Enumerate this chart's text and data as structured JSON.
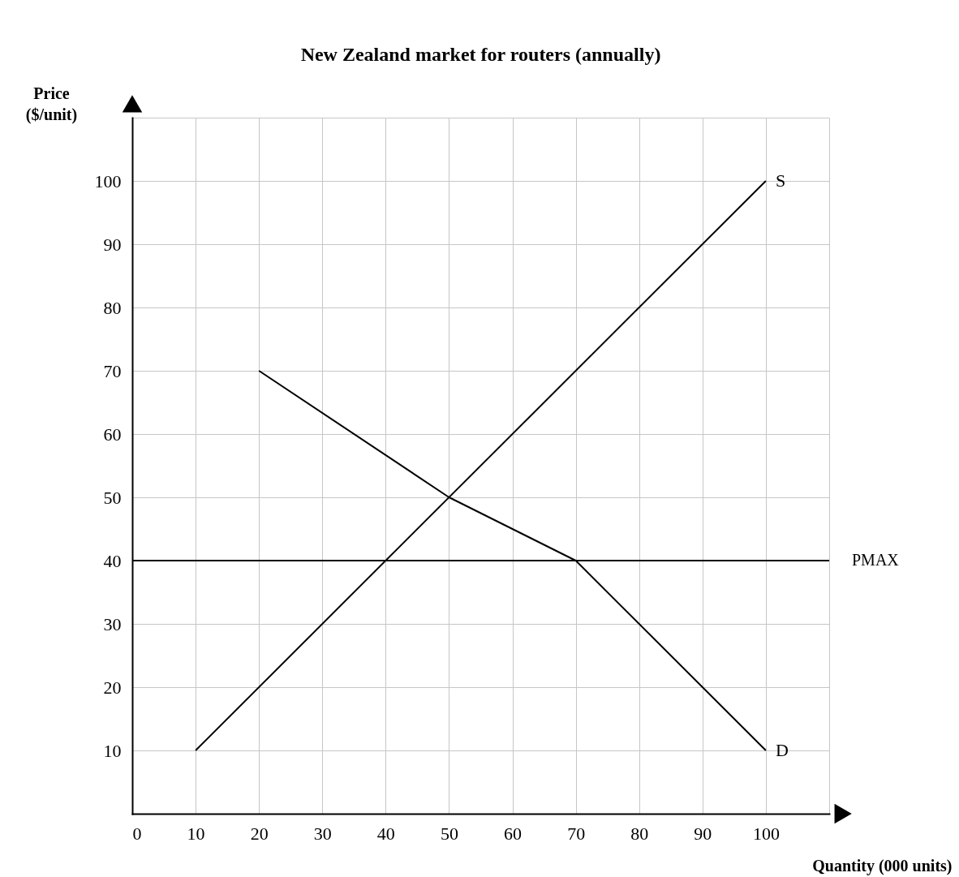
{
  "chart_data": {
    "type": "line",
    "title": "New Zealand market for routers (annually)",
    "xlabel": "Quantity (000 units)",
    "ylabel": "Price ($/unit)",
    "xlim": [
      0,
      110
    ],
    "ylim": [
      0,
      110
    ],
    "xticks": [
      0,
      10,
      20,
      30,
      40,
      50,
      60,
      70,
      80,
      90,
      100,
      {
        "value": 110,
        "label": null
      }
    ],
    "yticks": [
      {
        "value": 0,
        "label": null
      },
      10,
      20,
      30,
      40,
      50,
      60,
      70,
      80,
      90,
      100,
      {
        "value": 110,
        "label": null
      }
    ],
    "series": [
      {
        "name": "S",
        "color": "#000000",
        "x": [
          10,
          100
        ],
        "values": [
          10,
          100
        ]
      },
      {
        "name": "D",
        "color": "#000000",
        "x": [
          20,
          50,
          70,
          100
        ],
        "values": [
          70,
          50,
          40,
          10
        ]
      }
    ],
    "ref_lines": [
      {
        "axis": "y",
        "value": 40,
        "label": "PMAX",
        "color": "#000000"
      }
    ],
    "grid": true,
    "legend": false,
    "marker": "none",
    "line_style": "solid"
  }
}
